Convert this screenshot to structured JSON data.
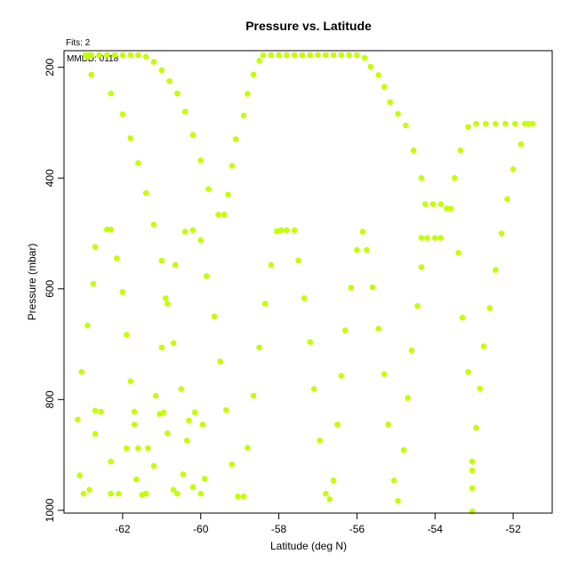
{
  "chart_data": {
    "type": "scatter",
    "title": "Pressure vs. Latitude",
    "xlabel": "Latitude (deg N)",
    "ylabel": "Pressure (mbar)",
    "annotations": [
      "Fits: 2",
      "MMDD: 0118"
    ],
    "xlim": [
      -63.5,
      -51.0
    ],
    "ylim": [
      1005,
      170
    ],
    "y_reversed": true,
    "grid": false,
    "marker_color": "#c2ff00",
    "x_ticks": [
      -62,
      -60,
      -58,
      -56,
      -54,
      -52
    ],
    "x_tick_labels": [
      "-62",
      "-60",
      "-58",
      "-56",
      "-54",
      "-52"
    ],
    "y_ticks": [
      200,
      400,
      600,
      800,
      1000
    ],
    "y_tick_labels": [
      "200",
      "400",
      "600",
      "800",
      "1000"
    ],
    "points": [
      [
        -62.95,
        178
      ],
      [
        -62.9,
        181
      ],
      [
        -62.85,
        178
      ],
      [
        -62.8,
        178
      ],
      [
        -62.6,
        178
      ],
      [
        -62.4,
        178
      ],
      [
        -62.2,
        178
      ],
      [
        -62.0,
        178
      ],
      [
        -61.8,
        178
      ],
      [
        -61.6,
        178
      ],
      [
        -61.4,
        181
      ],
      [
        -61.2,
        190
      ],
      [
        -61.0,
        205
      ],
      [
        -60.8,
        225
      ],
      [
        -60.6,
        247
      ],
      [
        -60.4,
        280
      ],
      [
        -60.2,
        322
      ],
      [
        -60.0,
        368
      ],
      [
        -59.8,
        420
      ],
      [
        -59.55,
        466
      ],
      [
        -59.4,
        466
      ],
      [
        -59.3,
        430
      ],
      [
        -59.2,
        378
      ],
      [
        -59.1,
        330
      ],
      [
        -58.9,
        287
      ],
      [
        -58.8,
        248
      ],
      [
        -58.65,
        213
      ],
      [
        -58.5,
        188
      ],
      [
        -58.4,
        178
      ],
      [
        -58.2,
        178
      ],
      [
        -58.0,
        178
      ],
      [
        -57.8,
        178
      ],
      [
        -57.6,
        178
      ],
      [
        -57.4,
        178
      ],
      [
        -57.2,
        178
      ],
      [
        -57.0,
        178
      ],
      [
        -56.8,
        178
      ],
      [
        -56.6,
        178
      ],
      [
        -56.4,
        178
      ],
      [
        -56.2,
        178
      ],
      [
        -56.0,
        178
      ],
      [
        -55.8,
        183
      ],
      [
        -55.65,
        199
      ],
      [
        -55.45,
        214
      ],
      [
        -55.3,
        235
      ],
      [
        -55.15,
        263
      ],
      [
        -54.95,
        284
      ],
      [
        -54.75,
        305
      ],
      [
        -54.55,
        350
      ],
      [
        -54.35,
        400
      ],
      [
        -54.25,
        447
      ],
      [
        -54.05,
        447
      ],
      [
        -53.85,
        447
      ],
      [
        -53.7,
        455
      ],
      [
        -53.6,
        455
      ],
      [
        -53.5,
        400
      ],
      [
        -53.35,
        350
      ],
      [
        -53.15,
        308
      ],
      [
        -52.95,
        302
      ],
      [
        -52.7,
        302
      ],
      [
        -52.45,
        302
      ],
      [
        -52.2,
        302
      ],
      [
        -51.95,
        302
      ],
      [
        -51.7,
        302
      ],
      [
        -51.6,
        302
      ],
      [
        -51.5,
        302
      ],
      [
        -54.35,
        508
      ],
      [
        -54.2,
        508
      ],
      [
        -54.0,
        508
      ],
      [
        -53.85,
        508
      ],
      [
        -58.05,
        496
      ],
      [
        -57.95,
        494
      ],
      [
        -57.8,
        494
      ],
      [
        -57.6,
        494
      ],
      [
        -62.8,
        213
      ],
      [
        -62.3,
        247
      ],
      [
        -62.0,
        285
      ],
      [
        -61.8,
        328
      ],
      [
        -61.6,
        373
      ],
      [
        -61.4,
        427
      ],
      [
        -61.2,
        484
      ],
      [
        -61.0,
        549
      ],
      [
        -60.9,
        617
      ],
      [
        -60.85,
        627
      ],
      [
        -62.4,
        493
      ],
      [
        -62.3,
        493
      ],
      [
        -62.7,
        524
      ],
      [
        -62.15,
        545
      ],
      [
        -62.75,
        591
      ],
      [
        -62.0,
        606
      ],
      [
        -62.9,
        666
      ],
      [
        -61.9,
        683
      ],
      [
        -61.8,
        767
      ],
      [
        -61.7,
        822
      ],
      [
        -61.7,
        845
      ],
      [
        -61.6,
        888
      ],
      [
        -61.9,
        888
      ],
      [
        -62.1,
        970
      ],
      [
        -62.3,
        970
      ],
      [
        -63.15,
        836
      ],
      [
        -63.05,
        750
      ],
      [
        -62.7,
        820
      ],
      [
        -62.55,
        822
      ],
      [
        -62.7,
        862
      ],
      [
        -62.3,
        912
      ],
      [
        -63.1,
        937
      ],
      [
        -63.0,
        970
      ],
      [
        -62.85,
        963
      ],
      [
        -61.65,
        944
      ],
      [
        -61.5,
        972
      ],
      [
        -61.4,
        970
      ],
      [
        -61.2,
        920
      ],
      [
        -61.35,
        888
      ],
      [
        -61.15,
        793
      ],
      [
        -61.0,
        706
      ],
      [
        -61.05,
        826
      ],
      [
        -60.95,
        823
      ],
      [
        -60.85,
        861
      ],
      [
        -60.7,
        963
      ],
      [
        -60.6,
        970
      ],
      [
        -60.45,
        935
      ],
      [
        -60.3,
        838
      ],
      [
        -60.35,
        874
      ],
      [
        -60.2,
        958
      ],
      [
        -60.15,
        823
      ],
      [
        -60.4,
        497
      ],
      [
        -60.2,
        494
      ],
      [
        -60.0,
        512
      ],
      [
        -60.65,
        557
      ],
      [
        -60.7,
        698
      ],
      [
        -60.5,
        781
      ],
      [
        -59.95,
        845
      ],
      [
        -60.0,
        970
      ],
      [
        -59.9,
        943
      ],
      [
        -59.85,
        577
      ],
      [
        -59.65,
        650
      ],
      [
        -59.5,
        731
      ],
      [
        -59.35,
        819
      ],
      [
        -59.2,
        917
      ],
      [
        -59.05,
        975
      ],
      [
        -58.9,
        975
      ],
      [
        -58.8,
        887
      ],
      [
        -58.65,
        793
      ],
      [
        -58.5,
        706
      ],
      [
        -58.35,
        627
      ],
      [
        -58.2,
        557
      ],
      [
        -57.5,
        549
      ],
      [
        -57.35,
        617
      ],
      [
        -57.2,
        696
      ],
      [
        -57.1,
        781
      ],
      [
        -56.95,
        874
      ],
      [
        -56.8,
        970
      ],
      [
        -56.7,
        980
      ],
      [
        -56.6,
        946
      ],
      [
        -56.5,
        845
      ],
      [
        -56.4,
        757
      ],
      [
        -56.3,
        675
      ],
      [
        -56.15,
        598
      ],
      [
        -56.0,
        530
      ],
      [
        -55.85,
        497
      ],
      [
        -55.75,
        530
      ],
      [
        -55.6,
        597
      ],
      [
        -55.45,
        672
      ],
      [
        -55.3,
        754
      ],
      [
        -55.2,
        845
      ],
      [
        -55.05,
        946
      ],
      [
        -54.95,
        983
      ],
      [
        -54.8,
        891
      ],
      [
        -54.7,
        797
      ],
      [
        -54.6,
        711
      ],
      [
        -54.45,
        631
      ],
      [
        -54.35,
        561
      ],
      [
        -53.4,
        535
      ],
      [
        -53.3,
        652
      ],
      [
        -53.15,
        750
      ],
      [
        -53.05,
        912
      ],
      [
        -53.05,
        928
      ],
      [
        -53.05,
        960
      ],
      [
        -53.05,
        1002
      ],
      [
        -52.95,
        851
      ],
      [
        -52.85,
        780
      ],
      [
        -52.75,
        704
      ],
      [
        -52.6,
        635
      ],
      [
        -52.45,
        566
      ],
      [
        -52.3,
        500
      ],
      [
        -52.15,
        438
      ],
      [
        -52.0,
        384
      ],
      [
        -51.8,
        339
      ]
    ]
  }
}
